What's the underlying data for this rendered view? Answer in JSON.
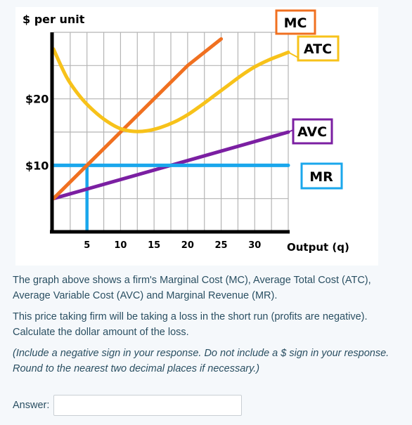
{
  "chart_data": {
    "type": "line",
    "ylabel": "$ per unit",
    "xlabel": "Output (q)",
    "xlim": [
      0,
      35
    ],
    "ylim": [
      0,
      30
    ],
    "x_ticks": [
      5,
      10,
      15,
      20,
      25,
      30
    ],
    "y_tick_labels": [
      {
        "value": 10,
        "label": "$10"
      },
      {
        "value": 20,
        "label": "$20"
      }
    ],
    "grid": true,
    "series": [
      {
        "name": "MC",
        "color": "#f07020",
        "points": [
          [
            0,
            5
          ],
          [
            5,
            10
          ],
          [
            10,
            15
          ],
          [
            15,
            20
          ],
          [
            20,
            25
          ],
          [
            25,
            29
          ]
        ]
      },
      {
        "name": "ATC",
        "color": "#f7c21a",
        "points": [
          [
            0,
            27.5
          ],
          [
            2,
            23.2
          ],
          [
            4,
            20.3
          ],
          [
            6,
            18.2
          ],
          [
            8,
            16.6
          ],
          [
            10,
            15.5
          ],
          [
            12,
            15.1
          ],
          [
            14,
            15.2
          ],
          [
            16,
            15.7
          ],
          [
            18,
            16.5
          ],
          [
            20,
            17.6
          ],
          [
            22,
            19
          ],
          [
            24,
            20.5
          ],
          [
            26,
            22
          ],
          [
            28,
            23.5
          ],
          [
            30,
            24.8
          ],
          [
            32,
            25.8
          ],
          [
            34,
            26.6
          ],
          [
            35,
            27
          ]
        ]
      },
      {
        "name": "AVC",
        "color": "#7b1fa2",
        "points": [
          [
            0,
            5
          ],
          [
            35,
            15
          ]
        ]
      },
      {
        "name": "MR",
        "color": "#1aa7ec",
        "points": [
          [
            0,
            10
          ],
          [
            35,
            10
          ]
        ]
      }
    ],
    "guide_line": {
      "color": "#1aa7ec",
      "points": [
        [
          5,
          0
        ],
        [
          5,
          10
        ]
      ]
    },
    "legend_labels": [
      {
        "text": "MC",
        "border": "#f07020"
      },
      {
        "text": "ATC",
        "border": "#f7c21a"
      },
      {
        "text": "AVC",
        "border": "#7b1fa2"
      },
      {
        "text": "MR",
        "border": "#1aa7ec"
      }
    ]
  },
  "question": {
    "p1": "The graph above shows a firm's Marginal Cost (MC), Average Total Cost (ATC), Average Variable Cost (AVC) and Marginal Revenue (MR).",
    "p2": "This price taking firm will be taking a loss in the short run (profits are negative). Calculate the dollar amount of the loss.",
    "p3": "(Include a negative sign in your response. Do not include a $ sign in your response. Round to the nearest two decimal places if necessary.)"
  },
  "answer": {
    "label": "Answer:",
    "value": ""
  }
}
